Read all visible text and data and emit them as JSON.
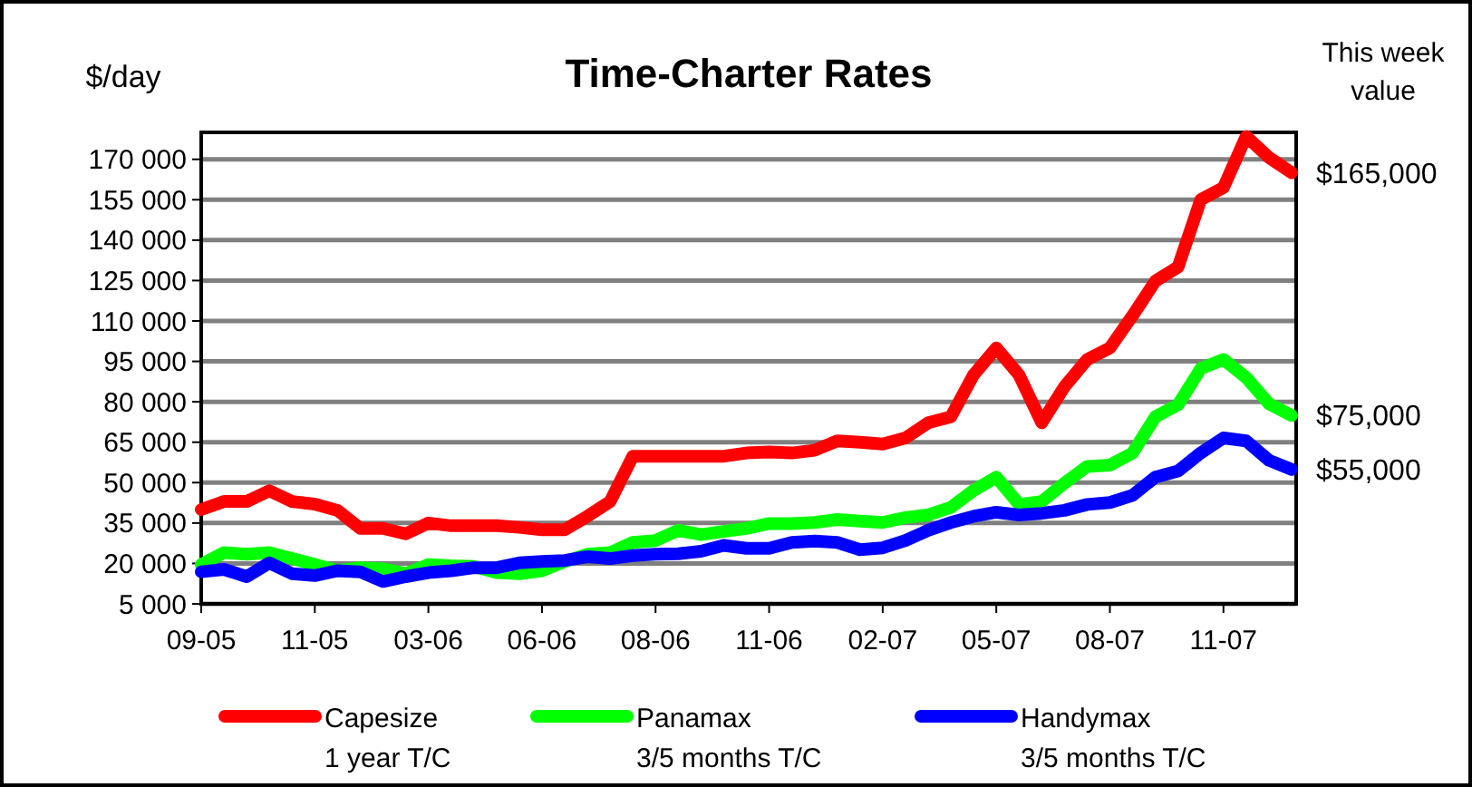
{
  "chart_data": {
    "type": "line",
    "title": "Time-Charter Rates",
    "ylabel": "$/day",
    "categories": [
      "09-05",
      null,
      null,
      null,
      null,
      "11-05",
      null,
      null,
      null,
      null,
      "03-06",
      null,
      null,
      null,
      null,
      "06-06",
      null,
      null,
      null,
      null,
      "08-06",
      null,
      null,
      null,
      null,
      "11-06",
      null,
      null,
      null,
      null,
      "02-07",
      null,
      null,
      null,
      null,
      "05-07",
      null,
      null,
      null,
      null,
      "08-07",
      null,
      null,
      null,
      null,
      "11-07",
      null,
      null,
      null
    ],
    "series": [
      {
        "name": "Capesize\n1 year T/C",
        "color": "#ff0000",
        "values": [
          40000,
          43000,
          43000,
          47000,
          43000,
          42000,
          39700,
          33000,
          33000,
          31000,
          35000,
          34000,
          34000,
          34000,
          33400,
          32500,
          32500,
          37500,
          43000,
          59800,
          59800,
          59800,
          59800,
          59800,
          61000,
          61400,
          61000,
          62000,
          65500,
          65000,
          64300,
          66600,
          72200,
          74400,
          90000,
          100000,
          90000,
          72200,
          85600,
          95700,
          100000,
          112000,
          124800,
          130000,
          155000,
          159500,
          178500,
          170700,
          165000
        ]
      },
      {
        "name": "Panamax\n3/5 months T/C",
        "color": "#00ff00",
        "values": [
          19600,
          24000,
          23400,
          24000,
          21800,
          19600,
          17300,
          18400,
          18000,
          16200,
          19600,
          19100,
          18900,
          16600,
          16200,
          17300,
          20700,
          23400,
          24000,
          27800,
          28500,
          32300,
          30700,
          31900,
          33000,
          34800,
          34800,
          35200,
          36300,
          35700,
          35200,
          37000,
          38000,
          40800,
          47100,
          52000,
          41900,
          43000,
          49800,
          56000,
          56500,
          61000,
          74400,
          78900,
          92300,
          95700,
          89000,
          79300,
          74900
        ]
      },
      {
        "name": "Handymax\n3/5 months T/C",
        "color": "#0000ff",
        "values": [
          16900,
          17800,
          15100,
          20200,
          16200,
          15500,
          17300,
          16900,
          13300,
          15100,
          16600,
          17300,
          18400,
          18400,
          20200,
          20700,
          21100,
          22500,
          21800,
          22900,
          23400,
          23600,
          24500,
          26700,
          25600,
          25600,
          27800,
          28300,
          27800,
          25100,
          25800,
          28500,
          32300,
          35200,
          37500,
          39000,
          38000,
          38600,
          39700,
          41900,
          42600,
          45300,
          52000,
          54300,
          61000,
          66600,
          65500,
          58300,
          54900
        ]
      }
    ],
    "ylim": [
      5000,
      180000
    ],
    "yticks": [
      {
        "value": 5000,
        "label": "5 000"
      },
      {
        "value": 20000,
        "label": "20 000"
      },
      {
        "value": 35000,
        "label": "35 000"
      },
      {
        "value": 50000,
        "label": "50 000"
      },
      {
        "value": 65000,
        "label": "65 000"
      },
      {
        "value": 80000,
        "label": "80 000"
      },
      {
        "value": 95000,
        "label": "95 000"
      },
      {
        "value": 110000,
        "label": "110 000"
      },
      {
        "value": 125000,
        "label": "125 000"
      },
      {
        "value": 140000,
        "label": "140 000"
      },
      {
        "value": 155000,
        "label": "155 000"
      },
      {
        "value": 170000,
        "label": "170 000"
      }
    ],
    "grid": "y",
    "legend": "bottom",
    "marker": "none",
    "line_style": "solid",
    "annotations": [
      "This week value",
      "$165,000",
      "$75,000",
      "$55,000"
    ]
  }
}
